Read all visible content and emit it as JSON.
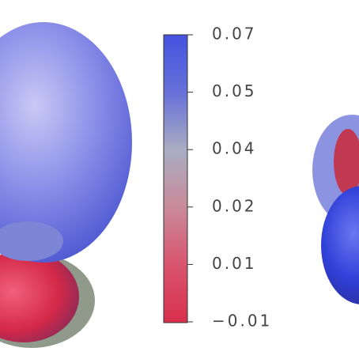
{
  "colorbar": {
    "tick_labels": [
      "0.07",
      "0.05",
      "0.04",
      "0.02",
      "0.01",
      "−0.01"
    ]
  }
}
